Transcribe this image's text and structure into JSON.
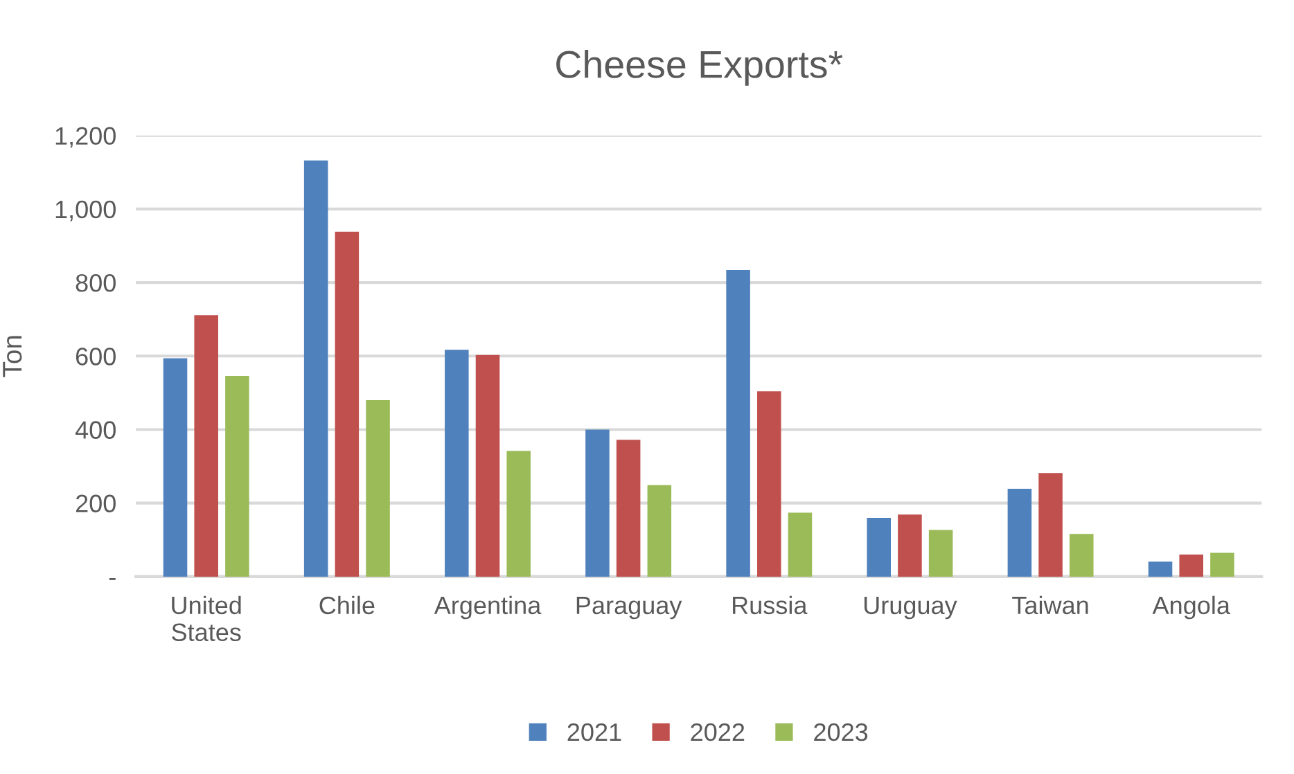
{
  "chart_data": {
    "type": "bar",
    "title": "Cheese Exports*",
    "ylabel": "Ton",
    "categories": [
      "United\nStates",
      "Chile",
      "Argentina",
      "Paraguay",
      "Russia",
      "Uruguay",
      "Taiwan",
      "Angola"
    ],
    "series": [
      {
        "name": "2021",
        "color": "#4f81bd",
        "values": [
          594,
          1132,
          617,
          400,
          834,
          160,
          239,
          41
        ]
      },
      {
        "name": "2022",
        "color": "#c0504d",
        "values": [
          711,
          938,
          603,
          372,
          504,
          169,
          282,
          60
        ]
      },
      {
        "name": "2023",
        "color": "#9bbb59",
        "values": [
          546,
          480,
          342,
          249,
          174,
          127,
          116,
          65
        ]
      }
    ],
    "ylim": [
      0,
      1200
    ],
    "yticks": [
      {
        "value": 0,
        "label": "-"
      },
      {
        "value": 200,
        "label": "200"
      },
      {
        "value": 400,
        "label": "400"
      },
      {
        "value": 600,
        "label": "600"
      },
      {
        "value": 800,
        "label": "800"
      },
      {
        "value": 1000,
        "label": "1,000"
      },
      {
        "value": 1200,
        "label": "1,200"
      }
    ],
    "grid": "y",
    "legend": "bottom"
  }
}
